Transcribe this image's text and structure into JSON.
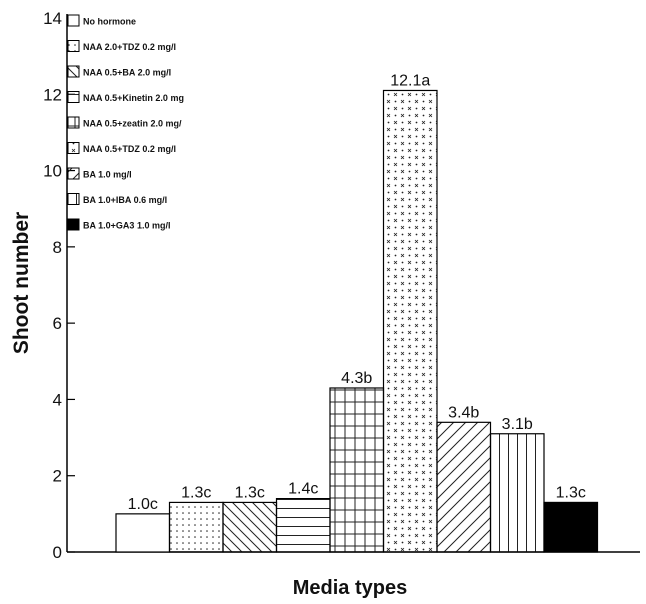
{
  "chart_data": {
    "type": "bar",
    "xlabel": "Media types",
    "ylabel": "Shoot number",
    "ylim": [
      0,
      14
    ],
    "yticks": [
      "0",
      "2",
      "4",
      "6",
      "8",
      "10",
      "12",
      "14"
    ],
    "legend_position": "top-left",
    "series": [
      {
        "name": "No hormone",
        "value": 1.0,
        "label": "1.0c",
        "pattern": "none"
      },
      {
        "name": "NAA 2.0+TDZ 0.2 mg/l",
        "value": 1.3,
        "label": "1.3c",
        "pattern": "dots"
      },
      {
        "name": "NAA 0.5+BA 2.0 mg/l",
        "value": 1.3,
        "label": "1.3c",
        "pattern": "backslash"
      },
      {
        "name": "NAA 0.5+Kinetin 2.0 mg",
        "value": 1.4,
        "label": "1.4c",
        "pattern": "hlines"
      },
      {
        "name": "NAA 0.5+zeatin 2.0 mg/",
        "value": 4.3,
        "label": "4.3b",
        "pattern": "grid"
      },
      {
        "name": "NAA 0.5+TDZ 0.2 mg/l",
        "value": 12.1,
        "label": "12.1a",
        "pattern": "crossdots"
      },
      {
        "name": "BA 1.0 mg/l",
        "value": 3.4,
        "label": "3.4b",
        "pattern": "slash"
      },
      {
        "name": "BA 1.0+IBA 0.6 mg/l",
        "value": 3.1,
        "label": "3.1b",
        "pattern": "vlines"
      },
      {
        "name": "BA 1.0+GA3 1.0 mg/l",
        "value": 1.3,
        "label": "1.3c",
        "pattern": "solid"
      }
    ]
  }
}
